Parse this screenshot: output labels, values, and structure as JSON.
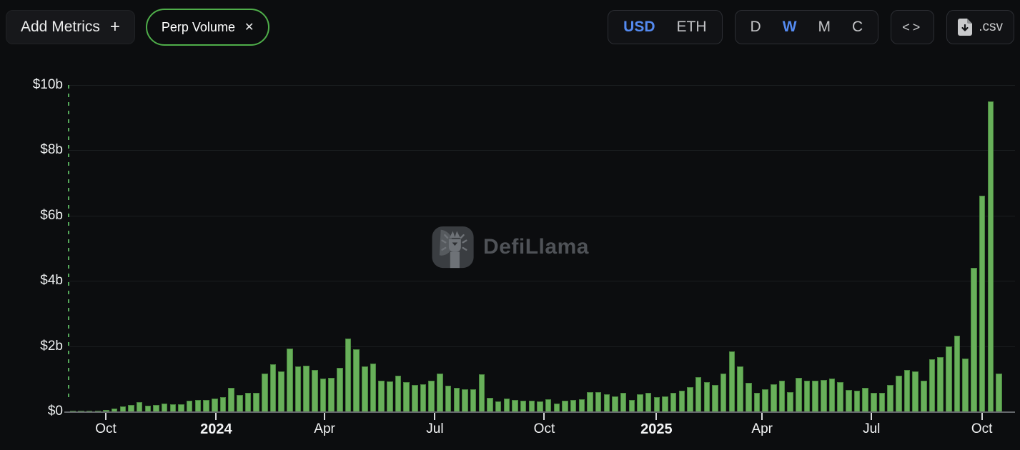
{
  "header": {
    "add_metrics": {
      "label": "Add Metrics",
      "plus": "+"
    },
    "metric_pill": {
      "label": "Perp Volume",
      "close": "✕"
    },
    "currency_toggle": {
      "options": [
        "USD",
        "ETH"
      ],
      "selected": "USD"
    },
    "interval_toggle": {
      "options": [
        "D",
        "W",
        "M",
        "C"
      ],
      "selected": "W"
    },
    "embed_label": "<>",
    "csv_label": ".csv"
  },
  "watermark": {
    "text": "DefiLlama"
  },
  "colors": {
    "accent_blue": "#548af0",
    "bar_green": "#68b05a",
    "pill_green": "#4fae4a",
    "dashed_line_green": "#55a85a",
    "background": "#0c0d0f"
  },
  "chart_data": {
    "type": "bar",
    "title": "",
    "xlabel": "",
    "ylabel": "",
    "unit": "USD billions",
    "ylim": [
      0,
      10
    ],
    "grid": "horizontal-faint",
    "legend": "none",
    "y_ticks": [
      {
        "label": "$10b",
        "value": 10
      },
      {
        "label": "$8b",
        "value": 8
      },
      {
        "label": "$6b",
        "value": 6
      },
      {
        "label": "$4b",
        "value": 4
      },
      {
        "label": "$2b",
        "value": 2
      },
      {
        "label": "$0",
        "value": 0
      }
    ],
    "x_ticks": [
      {
        "label": "Oct",
        "pos": 0.039,
        "bold": false
      },
      {
        "label": "2024",
        "pos": 0.157,
        "bold": true
      },
      {
        "label": "Apr",
        "pos": 0.273,
        "bold": false
      },
      {
        "label": "Jul",
        "pos": 0.391,
        "bold": false
      },
      {
        "label": "Oct",
        "pos": 0.508,
        "bold": false
      },
      {
        "label": "2025",
        "pos": 0.628,
        "bold": true
      },
      {
        "label": "Apr",
        "pos": 0.741,
        "bold": false
      },
      {
        "label": "Jul",
        "pos": 0.858,
        "bold": false
      },
      {
        "label": "Oct",
        "pos": 0.976,
        "bold": false
      }
    ],
    "series": [
      {
        "name": "Perp Volume",
        "interval": "weekly",
        "values": [
          0.01,
          0.02,
          0.02,
          0.03,
          0.04,
          0.09,
          0.15,
          0.2,
          0.28,
          0.18,
          0.2,
          0.25,
          0.22,
          0.23,
          0.33,
          0.35,
          0.35,
          0.4,
          0.44,
          0.73,
          0.5,
          0.57,
          0.58,
          1.15,
          1.45,
          1.22,
          1.92,
          1.38,
          1.4,
          1.26,
          1.0,
          1.02,
          1.33,
          2.24,
          1.91,
          1.37,
          1.47,
          0.94,
          0.91,
          1.09,
          0.89,
          0.81,
          0.84,
          0.94,
          1.15,
          0.78,
          0.73,
          0.68,
          0.68,
          1.13,
          0.42,
          0.31,
          0.39,
          0.36,
          0.33,
          0.34,
          0.31,
          0.38,
          0.25,
          0.34,
          0.36,
          0.38,
          0.6,
          0.6,
          0.52,
          0.46,
          0.57,
          0.35,
          0.53,
          0.56,
          0.44,
          0.45,
          0.58,
          0.63,
          0.74,
          1.05,
          0.89,
          0.8,
          1.16,
          1.83,
          1.38,
          0.87,
          0.58,
          0.69,
          0.83,
          0.94,
          0.6,
          1.02,
          0.95,
          0.95,
          0.97,
          1.0,
          0.89,
          0.65,
          0.64,
          0.73,
          0.57,
          0.58,
          0.8,
          1.09,
          1.28,
          1.22,
          0.95,
          1.6,
          1.66,
          1.99,
          2.33,
          1.62,
          4.4,
          6.6,
          9.5,
          1.15
        ]
      }
    ]
  }
}
